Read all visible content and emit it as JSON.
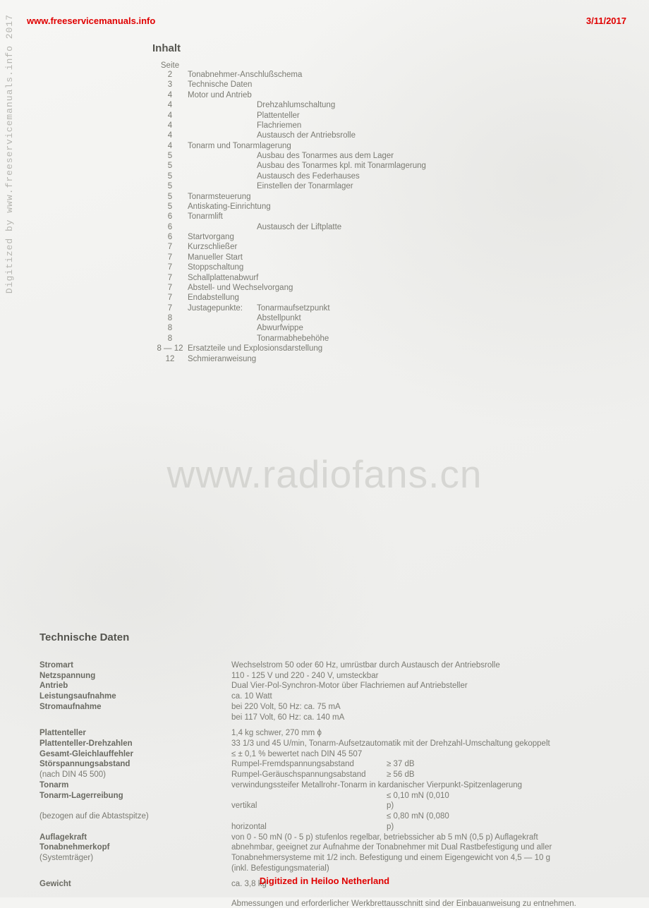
{
  "header": {
    "url": "www.freeservicemanuals.info",
    "date": "3/11/2017"
  },
  "side_text": "Digitized by www.freeservicemanuals.info 2017",
  "watermark": "www.radiofans.cn",
  "footer": "Digitized in Heiloo Netherland",
  "colors": {
    "red": "#e00000",
    "text_gray": "#7a7a72",
    "bold_gray": "#6a6a62",
    "bg": "#f4f4f2"
  },
  "inhalt": {
    "title": "Inhalt",
    "page_header": "Seite",
    "rows": [
      {
        "page": "2",
        "text": "Tonabnehmer-Anschlußschema",
        "indent": 0
      },
      {
        "page": "3",
        "text": "Technische Daten",
        "indent": 0
      },
      {
        "page": "4",
        "text": "Motor und Antrieb",
        "indent": 0
      },
      {
        "page": "4",
        "text": "Drehzahlumschaltung",
        "indent": 1
      },
      {
        "page": "4",
        "text": "Plattenteller",
        "indent": 1
      },
      {
        "page": "4",
        "text": "Flachriemen",
        "indent": 1
      },
      {
        "page": "4",
        "text": "Austausch der Antriebsrolle",
        "indent": 1
      },
      {
        "page": "4",
        "text": "Tonarm und Tonarmlagerung",
        "indent": 0
      },
      {
        "page": "5",
        "text": "Ausbau des Tonarmes aus dem Lager",
        "indent": 1
      },
      {
        "page": "5",
        "text": "Ausbau des Tonarmes kpl. mit Tonarmlagerung",
        "indent": 1
      },
      {
        "page": "5",
        "text": "Austausch des Federhauses",
        "indent": 1
      },
      {
        "page": "5",
        "text": "Einstellen der Tonarmlager",
        "indent": 1
      },
      {
        "page": "5",
        "text": "Tonarmsteuerung",
        "indent": 0
      },
      {
        "page": "5",
        "text": "Antiskating-Einrichtung",
        "indent": 0
      },
      {
        "page": "6",
        "text": "Tonarmlift",
        "indent": 0
      },
      {
        "page": "6",
        "text": "Austausch der Liftplatte",
        "indent": 1
      },
      {
        "page": "6",
        "text": "Startvorgang",
        "indent": 0
      },
      {
        "page": "7",
        "text": "Kurzschließer",
        "indent": 0
      },
      {
        "page": "7",
        "text": "Manueller Start",
        "indent": 0
      },
      {
        "page": "7",
        "text": "Stoppschaltung",
        "indent": 0
      },
      {
        "page": "7",
        "text": "Schallplattenabwurf",
        "indent": 0
      },
      {
        "page": "7",
        "text": "Abstell- und Wechselvorgang",
        "indent": 0
      },
      {
        "page": "7",
        "text": "Endabstellung",
        "indent": 0
      },
      {
        "page": "7",
        "prefix": "Justagepunkte:",
        "text": "Tonarmaufsetzpunkt",
        "indent": 2
      },
      {
        "page": "8",
        "text": "Abstellpunkt",
        "indent": 1
      },
      {
        "page": "8",
        "text": "Abwurfwippe",
        "indent": 1
      },
      {
        "page": "8",
        "text": "Tonarmabhebehöhe",
        "indent": 1
      },
      {
        "page": "8 — 12",
        "text": "Ersatzteile und Explosionsdarstellung",
        "indent": 0
      },
      {
        "page": "12",
        "text": "Schmieranweisung",
        "indent": 0
      }
    ]
  },
  "tech": {
    "title": "Technische Daten",
    "rows": [
      {
        "label": "Stromart",
        "value": "Wechselstrom 50 oder 60 Hz, umrüstbar durch Austausch der Antriebsrolle"
      },
      {
        "label": "Netzspannung",
        "value": "110 - 125 V und 220 - 240 V, umsteckbar"
      },
      {
        "label": "Antrieb",
        "value": "Dual Vier-Pol-Synchron-Motor über Flachriemen auf Antriebsteller"
      },
      {
        "label": "Leistungsaufnahme",
        "value": "ca. 10 Watt"
      },
      {
        "label": "Stromaufnahme",
        "value": "bei 220 Volt, 50 Hz: ca.   75 mA"
      },
      {
        "label": "",
        "value": "bei 117 Volt, 60 Hz: ca. 140 mA"
      },
      {
        "gap": true
      },
      {
        "label": "Plattenteller",
        "value": "1,4 kg schwer, 270 mm ϕ"
      },
      {
        "label": "Plattenteller-Drehzahlen",
        "value": "33 1/3 und 45 U/min, Tonarm-Aufsetzautomatik mit der Drehzahl-Umschaltung gekoppelt"
      },
      {
        "label": "Gesamt-Gleichlauffehler",
        "value": "≤ ± 0,1 % bewertet nach DIN 45 507"
      },
      {
        "label": "Störspannungsabstand",
        "sub1": "Rumpel-Fremdspannungsabstand",
        "sub2": "≥ 37 dB"
      },
      {
        "label_sub": "(nach DIN 45 500)",
        "sub1": "Rumpel-Geräuschspannungsabstand",
        "sub2": "≥ 56 dB"
      },
      {
        "label": "Tonarm",
        "value": "verwindungssteifer Metallrohr-Tonarm in kardanischer Vierpunkt-Spitzenlagerung"
      },
      {
        "label": "Tonarm-Lagerreibung",
        "sub1": "vertikal",
        "sub2": "≤ 0,10 mN (0,010 p)"
      },
      {
        "label_sub": "(bezogen auf die Abtastspitze)",
        "sub1": "horizontal",
        "sub2": "≤ 0,80 mN (0,080 p)"
      },
      {
        "label": "Auflagekraft",
        "value": "von 0 - 50 mN (0 - 5 p) stufenlos regelbar, betriebssicher ab 5 mN (0,5 p) Auflagekraft"
      },
      {
        "label": "Tonabnehmerkopf",
        "value": "abnehmbar, geeignet zur Aufnahme der Tonabnehmer mit Dual Rastbefestigung und aller"
      },
      {
        "label_sub": "(Systemträger)",
        "value": "Tonabnehmersysteme mit 1/2 inch. Befestigung und einem Eigengewicht von 4,5 — 10 g"
      },
      {
        "label": "",
        "value": "(inkl. Befestigungsmaterial)"
      },
      {
        "gap": true
      },
      {
        "label": "Gewicht",
        "value": "ca. 3,8 kg"
      }
    ],
    "footnote": "Abmessungen und erforderlicher Werkbrettausschnitt sind der Einbauanweisung zu entnehmen."
  }
}
